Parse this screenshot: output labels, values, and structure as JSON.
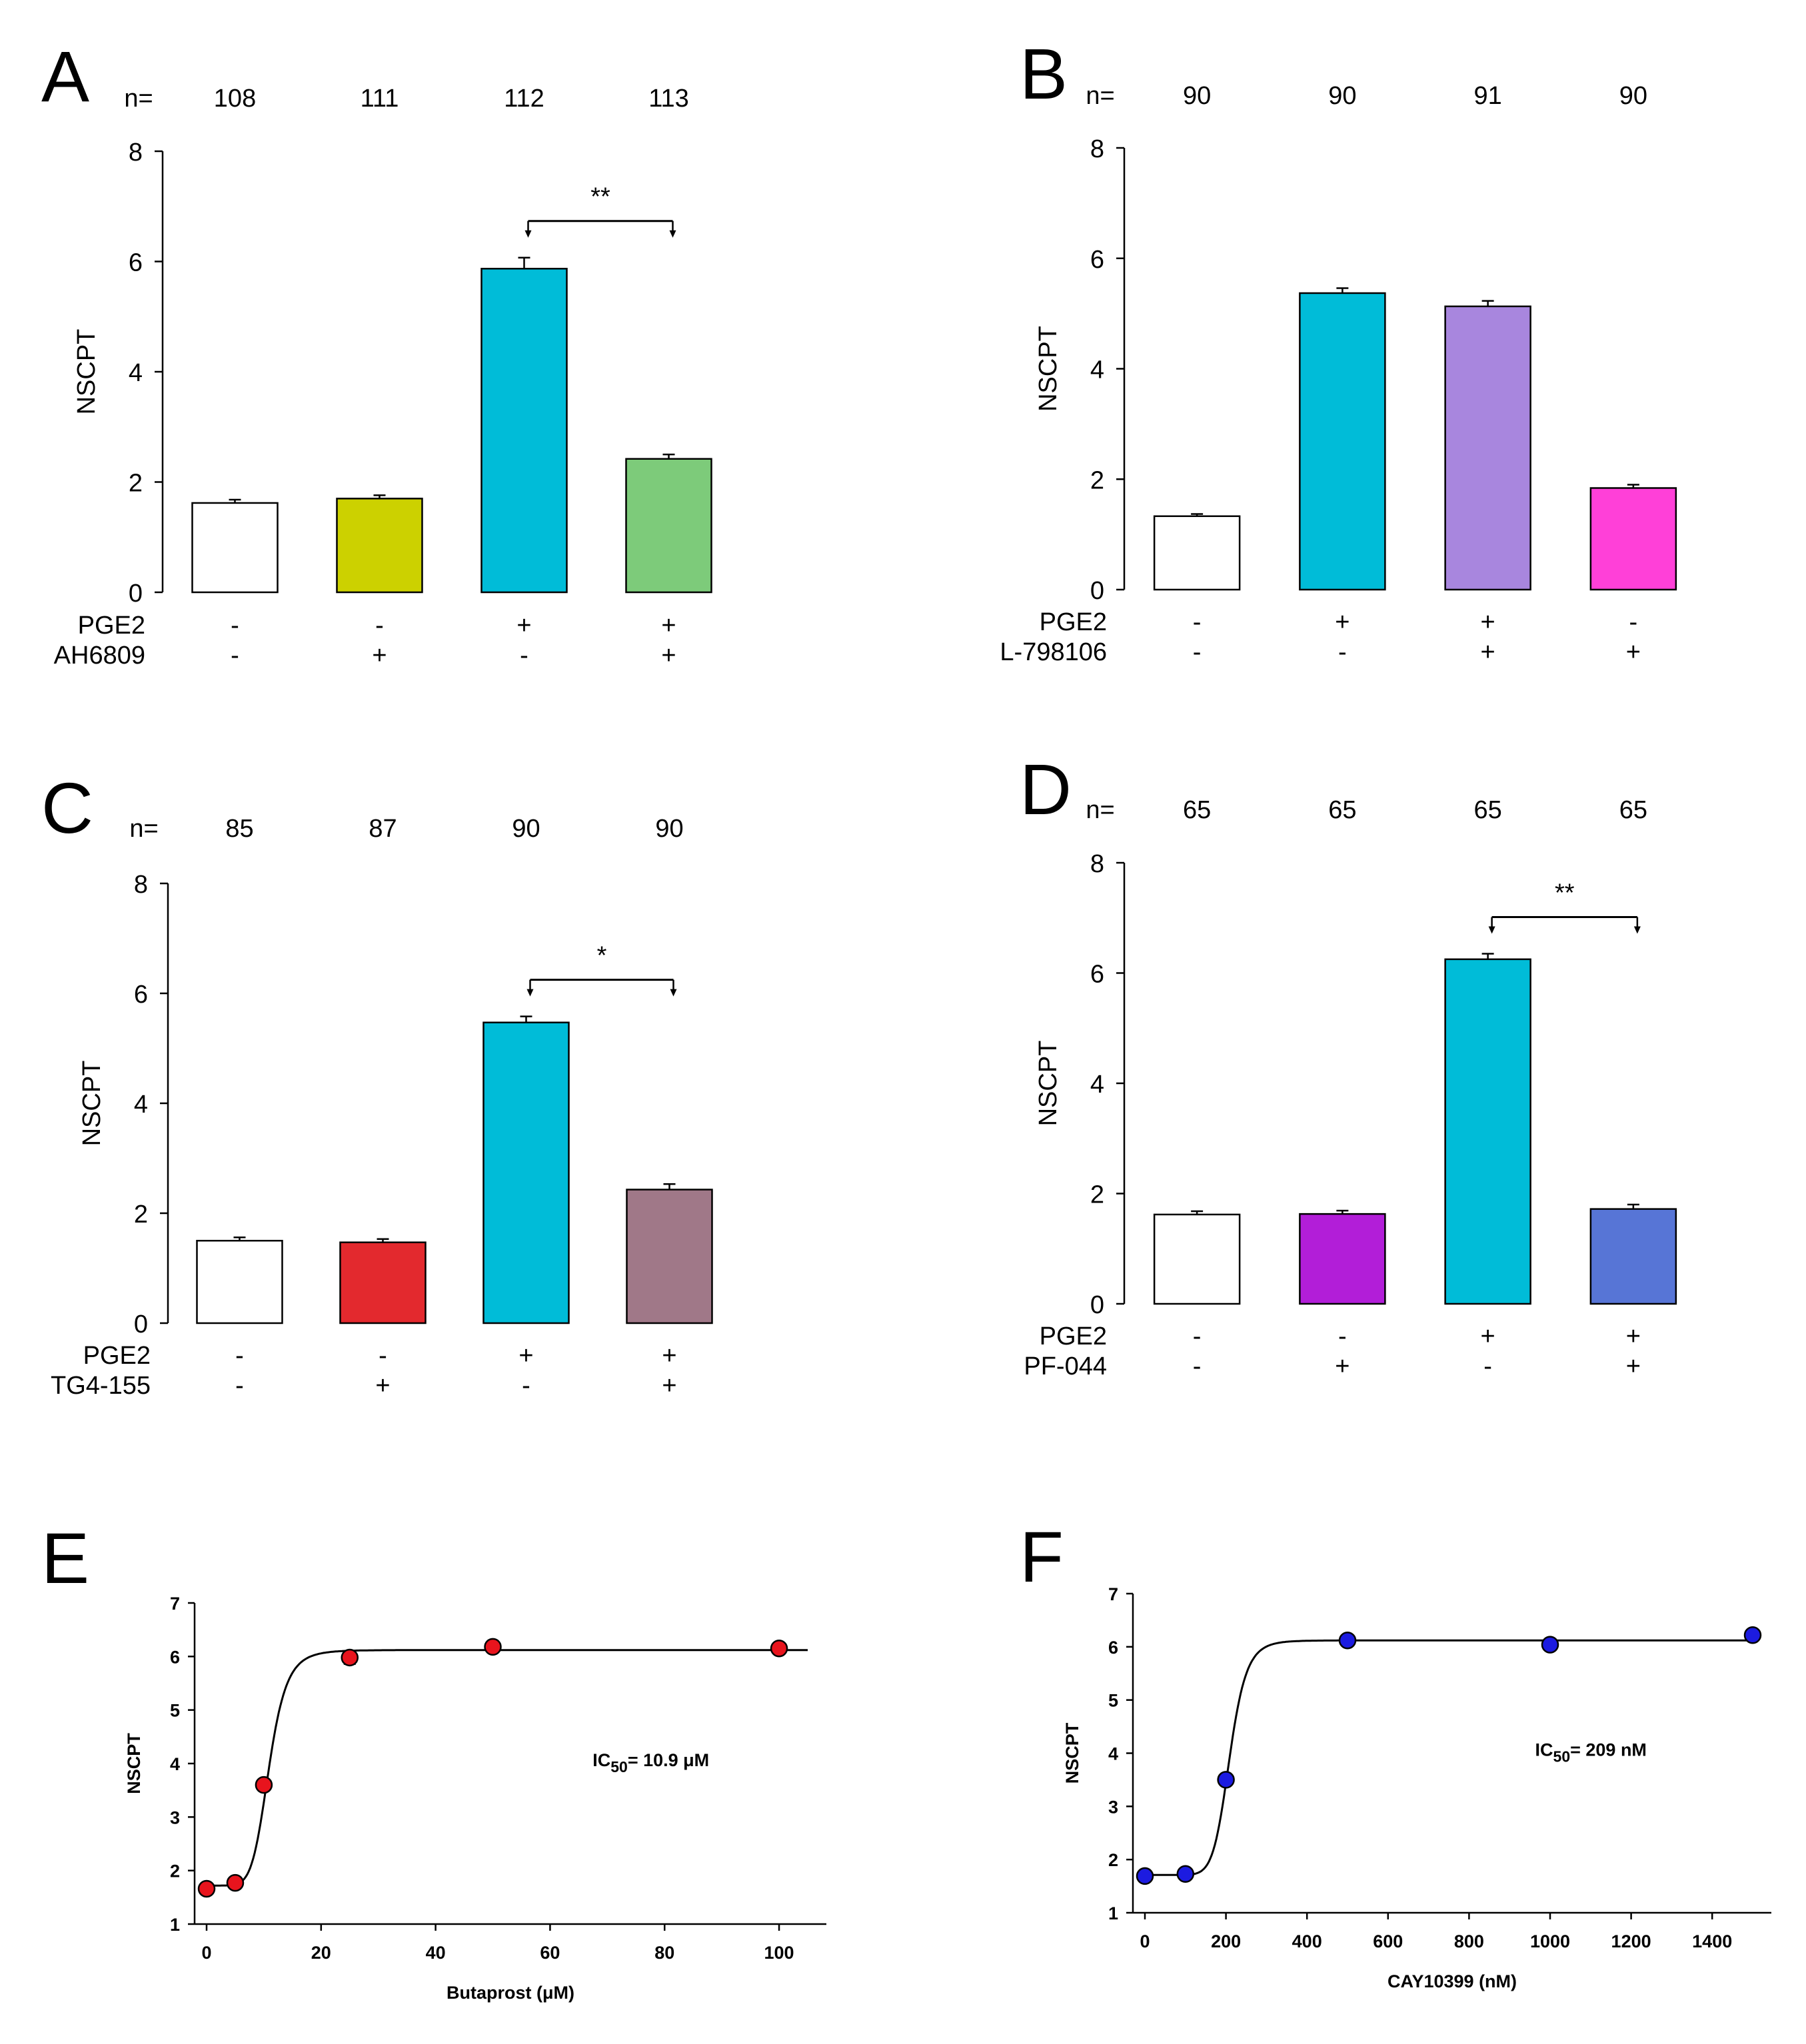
{
  "chart_data": [
    {
      "panel": "A",
      "type": "bar",
      "ylabel": "NSCPT",
      "ylim": [
        0,
        8
      ],
      "yticks": [
        0,
        2,
        4,
        6,
        8
      ],
      "n_label": "n=",
      "n_values": [
        "108",
        "111",
        "112",
        "113"
      ],
      "values": [
        1.62,
        1.7,
        5.87,
        2.42
      ],
      "errors": [
        0.06,
        0.06,
        0.2,
        0.08
      ],
      "colors": [
        "#ffffff",
        "#ccd100",
        "#00bcd8",
        "#7dcb7a"
      ],
      "treatment_rows": [
        {
          "label": "PGE2",
          "signs": [
            "-",
            "-",
            "+",
            "+"
          ]
        },
        {
          "label": "AH6809",
          "signs": [
            "-",
            "+",
            "-",
            "+"
          ]
        }
      ],
      "significance": {
        "from": 2,
        "to": 3,
        "label": "**"
      }
    },
    {
      "panel": "B",
      "type": "bar",
      "ylabel": "NSCPT",
      "ylim": [
        0,
        8
      ],
      "yticks": [
        0,
        2,
        4,
        6,
        8
      ],
      "n_label": "n=",
      "n_values": [
        "90",
        "90",
        "91",
        "90"
      ],
      "values": [
        1.33,
        5.37,
        5.13,
        1.84
      ],
      "errors": [
        0.04,
        0.09,
        0.1,
        0.06
      ],
      "colors": [
        "#ffffff",
        "#00bcd8",
        "#a886de",
        "#ff40d8"
      ],
      "treatment_rows": [
        {
          "label": "PGE2",
          "signs": [
            "-",
            "+",
            "+",
            "-"
          ]
        },
        {
          "label": "L-798106",
          "signs": [
            "-",
            "-",
            "+",
            "+"
          ]
        }
      ]
    },
    {
      "panel": "C",
      "type": "bar",
      "ylabel": "NSCPT",
      "ylim": [
        0,
        8
      ],
      "yticks": [
        0,
        2,
        4,
        6,
        8
      ],
      "n_label": "n=",
      "n_values": [
        "85",
        "87",
        "90",
        "90"
      ],
      "values": [
        1.5,
        1.47,
        5.47,
        2.43
      ],
      "errors": [
        0.06,
        0.06,
        0.11,
        0.1
      ],
      "colors": [
        "#ffffff",
        "#e3292e",
        "#00bcd8",
        "#a07888"
      ],
      "treatment_rows": [
        {
          "label": "PGE2",
          "signs": [
            "-",
            "-",
            "+",
            "+"
          ]
        },
        {
          "label": "TG4-155",
          "signs": [
            "-",
            "+",
            "-",
            "+"
          ]
        }
      ],
      "significance": {
        "from": 2,
        "to": 3,
        "label": "*"
      }
    },
    {
      "panel": "D",
      "type": "bar",
      "ylabel": "NSCPT",
      "ylim": [
        0,
        8
      ],
      "yticks": [
        0,
        2,
        4,
        6,
        8
      ],
      "n_label": "n=",
      "n_values": [
        "65",
        "65",
        "65",
        "65"
      ],
      "values": [
        1.62,
        1.63,
        6.25,
        1.72
      ],
      "errors": [
        0.06,
        0.06,
        0.1,
        0.08
      ],
      "colors": [
        "#ffffff",
        "#b21ed8",
        "#00bcd8",
        "#5775d6"
      ],
      "treatment_rows": [
        {
          "label": "PGE2",
          "signs": [
            "-",
            "-",
            "+",
            "+"
          ]
        },
        {
          "label": "PF-044",
          "signs": [
            "-",
            "+",
            "-",
            "+"
          ]
        }
      ],
      "significance": {
        "from": 2,
        "to": 3,
        "label": "**"
      }
    },
    {
      "panel": "E",
      "type": "scatter",
      "ylabel": "NSCPT",
      "xlabel": "Butaprost (μM)",
      "xlim": [
        0,
        105
      ],
      "ylim": [
        1,
        7
      ],
      "xticks": [
        0,
        20,
        40,
        60,
        80,
        100
      ],
      "yticks": [
        1,
        2,
        3,
        4,
        5,
        6,
        7
      ],
      "x": [
        0,
        5,
        10,
        25,
        50,
        100
      ],
      "y": [
        1.66,
        1.77,
        3.6,
        5.98,
        6.18,
        6.15
      ],
      "errors": [
        0,
        0,
        0,
        0.12,
        0,
        0
      ],
      "point_color": "#e8141d",
      "fit": {
        "bottom": 1.72,
        "top": 6.12,
        "ec50": 10.9,
        "hill": 7
      },
      "annotation": {
        "prefix": "IC",
        "sub": "50",
        "suffix": "= 10.9 μM"
      }
    },
    {
      "panel": "F",
      "type": "scatter",
      "ylabel": "NSCPT",
      "xlabel": "CAY10399 (nM)",
      "xlim": [
        0,
        1500
      ],
      "ylim": [
        1,
        7
      ],
      "xticks": [
        0,
        200,
        400,
        600,
        800,
        1000,
        1200,
        1400
      ],
      "yticks": [
        1,
        2,
        3,
        4,
        5,
        6,
        7
      ],
      "x": [
        0,
        100,
        200,
        500,
        1000,
        1500
      ],
      "y": [
        1.69,
        1.73,
        3.5,
        6.12,
        6.04,
        6.22
      ],
      "errors": [
        0,
        0,
        0,
        0.1,
        0.08,
        0
      ],
      "point_color": "#1c1be0",
      "fit": {
        "bottom": 1.71,
        "top": 6.12,
        "ec50": 209,
        "hill": 10
      },
      "annotation": {
        "prefix": "IC",
        "sub": "50",
        "suffix": "= 209 nM"
      }
    }
  ]
}
